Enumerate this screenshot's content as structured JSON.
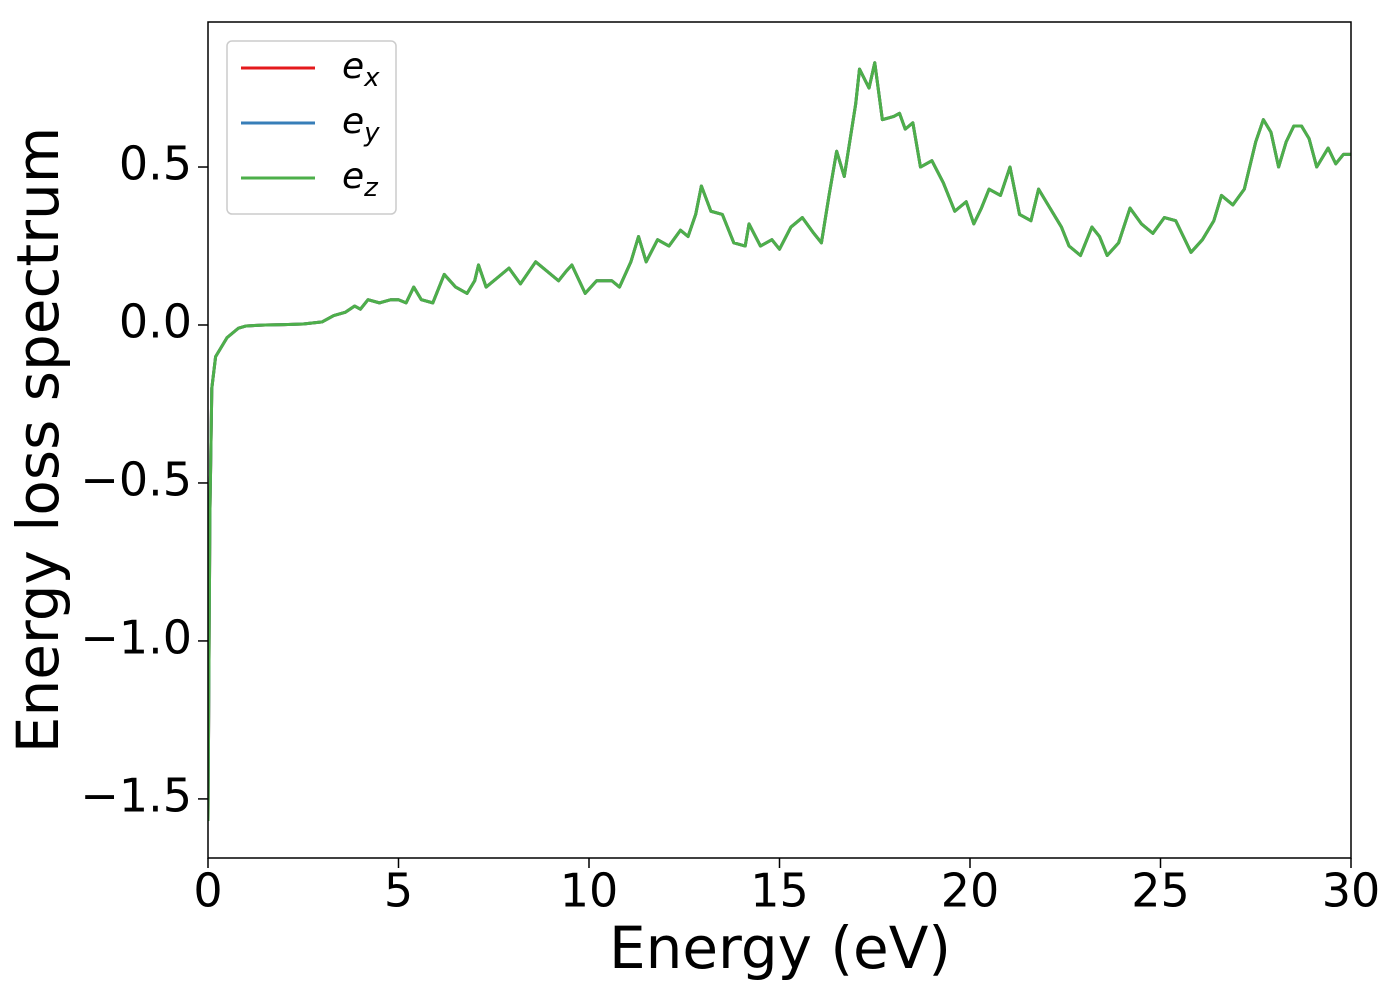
{
  "chart_data": {
    "type": "line",
    "x_label": "Energy (eV)",
    "y_label": "Energy loss spectrum",
    "x": [
      0,
      0.05,
      0.1,
      0.2,
      0.5,
      0.8,
      1.0,
      1.5,
      2.0,
      2.5,
      3.0,
      3.3,
      3.6,
      3.85,
      4.0,
      4.2,
      4.5,
      4.8,
      5.0,
      5.2,
      5.4,
      5.6,
      5.9,
      6.2,
      6.5,
      6.8,
      7.0,
      7.1,
      7.3,
      7.6,
      7.9,
      8.2,
      8.6,
      8.9,
      9.2,
      9.4,
      9.55,
      9.9,
      10.2,
      10.6,
      10.8,
      11.1,
      11.3,
      11.5,
      11.8,
      12.1,
      12.4,
      12.6,
      12.8,
      12.95,
      13.2,
      13.5,
      13.8,
      14.1,
      14.2,
      14.5,
      14.8,
      15.0,
      15.3,
      15.6,
      15.9,
      16.1,
      16.3,
      16.5,
      16.7,
      17.0,
      17.1,
      17.35,
      17.5,
      17.7,
      18.0,
      18.15,
      18.3,
      18.5,
      18.7,
      19.0,
      19.3,
      19.6,
      19.9,
      20.1,
      20.3,
      20.5,
      20.8,
      21.05,
      21.3,
      21.6,
      21.8,
      22.1,
      22.4,
      22.6,
      22.9,
      23.2,
      23.4,
      23.6,
      23.9,
      24.2,
      24.5,
      24.8,
      25.1,
      25.4,
      25.6,
      25.8,
      26.1,
      26.4,
      26.6,
      26.9,
      27.2,
      27.5,
      27.7,
      27.9,
      28.1,
      28.3,
      28.5,
      28.7,
      28.9,
      29.1,
      29.4,
      29.6,
      29.8,
      30.0
    ],
    "series": [
      {
        "name": "e_x",
        "color": "#e41a1c",
        "values": [
          -1.57,
          -0.6,
          -0.2,
          -0.1,
          -0.04,
          -0.01,
          -0.003,
          0.0,
          0.001,
          0.003,
          0.01,
          0.03,
          0.04,
          0.06,
          0.05,
          0.08,
          0.07,
          0.08,
          0.08,
          0.07,
          0.12,
          0.08,
          0.07,
          0.16,
          0.12,
          0.1,
          0.14,
          0.19,
          0.12,
          0.15,
          0.18,
          0.13,
          0.2,
          0.17,
          0.14,
          0.17,
          0.19,
          0.1,
          0.14,
          0.14,
          0.12,
          0.2,
          0.28,
          0.2,
          0.27,
          0.25,
          0.3,
          0.28,
          0.35,
          0.44,
          0.36,
          0.35,
          0.26,
          0.25,
          0.32,
          0.25,
          0.27,
          0.24,
          0.31,
          0.34,
          0.29,
          0.26,
          0.41,
          0.55,
          0.47,
          0.7,
          0.81,
          0.75,
          0.83,
          0.65,
          0.66,
          0.67,
          0.62,
          0.64,
          0.5,
          0.52,
          0.45,
          0.36,
          0.39,
          0.32,
          0.37,
          0.43,
          0.41,
          0.5,
          0.35,
          0.33,
          0.43,
          0.37,
          0.31,
          0.25,
          0.22,
          0.31,
          0.28,
          0.22,
          0.26,
          0.37,
          0.32,
          0.29,
          0.34,
          0.33,
          0.28,
          0.23,
          0.27,
          0.33,
          0.41,
          0.38,
          0.43,
          0.58,
          0.65,
          0.61,
          0.5,
          0.58,
          0.63,
          0.63,
          0.59,
          0.5,
          0.56,
          0.51,
          0.54,
          0.54
        ]
      },
      {
        "name": "e_y",
        "color": "#377eb8",
        "values": [
          -1.57,
          -0.6,
          -0.2,
          -0.1,
          -0.04,
          -0.01,
          -0.003,
          0.0,
          0.001,
          0.003,
          0.01,
          0.03,
          0.04,
          0.06,
          0.05,
          0.08,
          0.07,
          0.08,
          0.08,
          0.07,
          0.12,
          0.08,
          0.07,
          0.16,
          0.12,
          0.1,
          0.14,
          0.19,
          0.12,
          0.15,
          0.18,
          0.13,
          0.2,
          0.17,
          0.14,
          0.17,
          0.19,
          0.1,
          0.14,
          0.14,
          0.12,
          0.2,
          0.28,
          0.2,
          0.27,
          0.25,
          0.3,
          0.28,
          0.35,
          0.44,
          0.36,
          0.35,
          0.26,
          0.25,
          0.32,
          0.25,
          0.27,
          0.24,
          0.31,
          0.34,
          0.29,
          0.26,
          0.41,
          0.55,
          0.47,
          0.7,
          0.81,
          0.75,
          0.83,
          0.65,
          0.66,
          0.67,
          0.62,
          0.64,
          0.5,
          0.52,
          0.45,
          0.36,
          0.39,
          0.32,
          0.37,
          0.43,
          0.41,
          0.5,
          0.35,
          0.33,
          0.43,
          0.37,
          0.31,
          0.25,
          0.22,
          0.31,
          0.28,
          0.22,
          0.26,
          0.37,
          0.32,
          0.29,
          0.34,
          0.33,
          0.28,
          0.23,
          0.27,
          0.33,
          0.41,
          0.38,
          0.43,
          0.58,
          0.65,
          0.61,
          0.5,
          0.58,
          0.63,
          0.63,
          0.59,
          0.5,
          0.56,
          0.51,
          0.54,
          0.54
        ]
      },
      {
        "name": "e_z",
        "color": "#4daf4a",
        "values": [
          -1.57,
          -0.6,
          -0.2,
          -0.1,
          -0.04,
          -0.01,
          -0.003,
          0.0,
          0.001,
          0.003,
          0.01,
          0.03,
          0.04,
          0.06,
          0.05,
          0.08,
          0.07,
          0.08,
          0.08,
          0.07,
          0.12,
          0.08,
          0.07,
          0.16,
          0.12,
          0.1,
          0.14,
          0.19,
          0.12,
          0.15,
          0.18,
          0.13,
          0.2,
          0.17,
          0.14,
          0.17,
          0.19,
          0.1,
          0.14,
          0.14,
          0.12,
          0.2,
          0.28,
          0.2,
          0.27,
          0.25,
          0.3,
          0.28,
          0.35,
          0.44,
          0.36,
          0.35,
          0.26,
          0.25,
          0.32,
          0.25,
          0.27,
          0.24,
          0.31,
          0.34,
          0.29,
          0.26,
          0.41,
          0.55,
          0.47,
          0.7,
          0.81,
          0.75,
          0.83,
          0.65,
          0.66,
          0.67,
          0.62,
          0.64,
          0.5,
          0.52,
          0.45,
          0.36,
          0.39,
          0.32,
          0.37,
          0.43,
          0.41,
          0.5,
          0.35,
          0.33,
          0.43,
          0.37,
          0.31,
          0.25,
          0.22,
          0.31,
          0.28,
          0.22,
          0.26,
          0.37,
          0.32,
          0.29,
          0.34,
          0.33,
          0.28,
          0.23,
          0.27,
          0.33,
          0.41,
          0.38,
          0.43,
          0.58,
          0.65,
          0.61,
          0.5,
          0.58,
          0.63,
          0.63,
          0.59,
          0.5,
          0.56,
          0.51,
          0.54,
          0.54
        ]
      }
    ],
    "xlim": [
      0,
      30
    ],
    "xticks": [
      0,
      5,
      10,
      15,
      20,
      25,
      30
    ],
    "ylim": [
      -1.687,
      0.959
    ],
    "yticks": [
      {
        "value": -1.5,
        "label": "−1.5"
      },
      {
        "value": -1.0,
        "label": "−1.0"
      },
      {
        "value": -0.5,
        "label": "−0.5"
      },
      {
        "value": 0,
        "label": "0.0"
      },
      0.5
    ],
    "grid": false,
    "legend": "upper left"
  }
}
